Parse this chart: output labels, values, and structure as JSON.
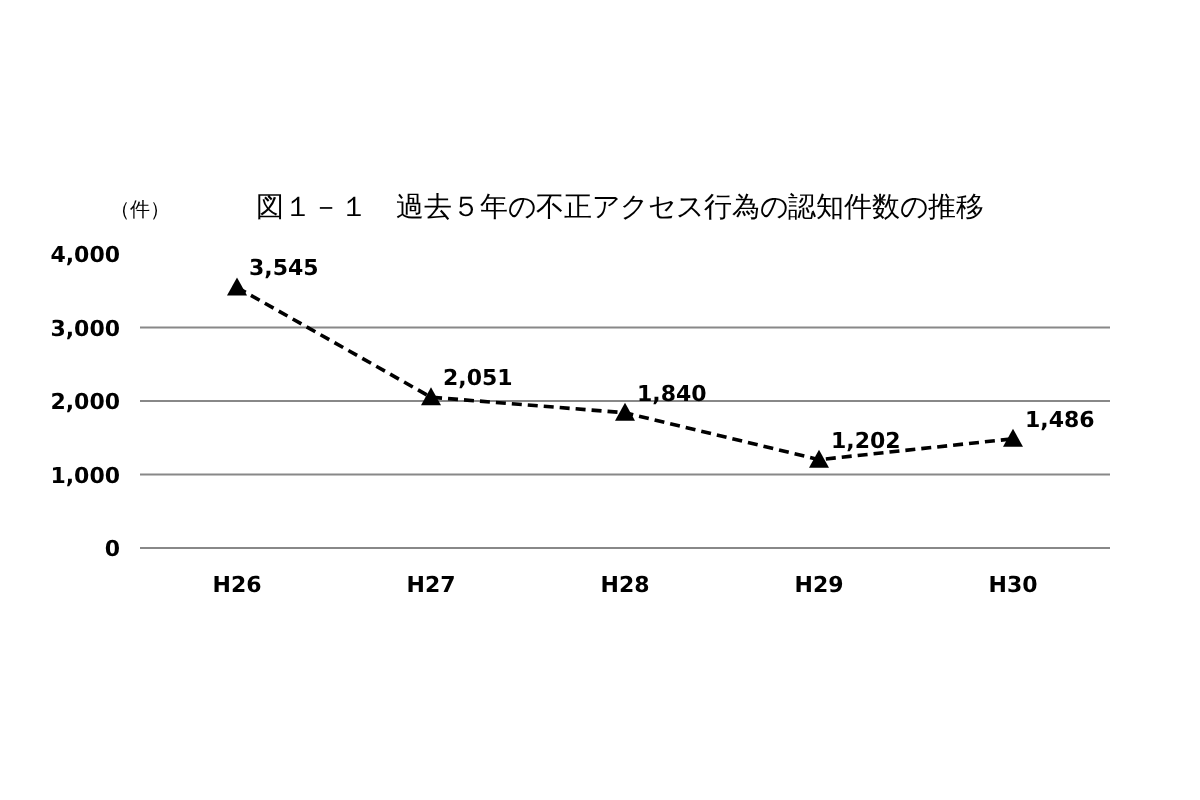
{
  "chart_data": {
    "type": "line",
    "title": "図１－１　過去５年の不正アクセス行為の認知件数の推移",
    "ylabel": "（件）",
    "categories": [
      "H26",
      "H27",
      "H28",
      "H29",
      "H30"
    ],
    "series": [
      {
        "color": "#000000",
        "values": [
          3545,
          2051,
          1840,
          1202,
          1486
        ],
        "value_labels": [
          "3,545",
          "2,051",
          "1,840",
          "1,202",
          "1,486"
        ]
      }
    ],
    "ylim": [
      0,
      4000
    ],
    "yticks": [
      0,
      {
        "value": 1000,
        "label": "1,000"
      },
      {
        "value": 2000,
        "label": "2,000"
      },
      {
        "value": 3000,
        "label": "3,000"
      },
      {
        "value": 4000,
        "label": "4,000"
      }
    ],
    "grid": "y",
    "marker": "triangle",
    "line_style": "dashed"
  }
}
